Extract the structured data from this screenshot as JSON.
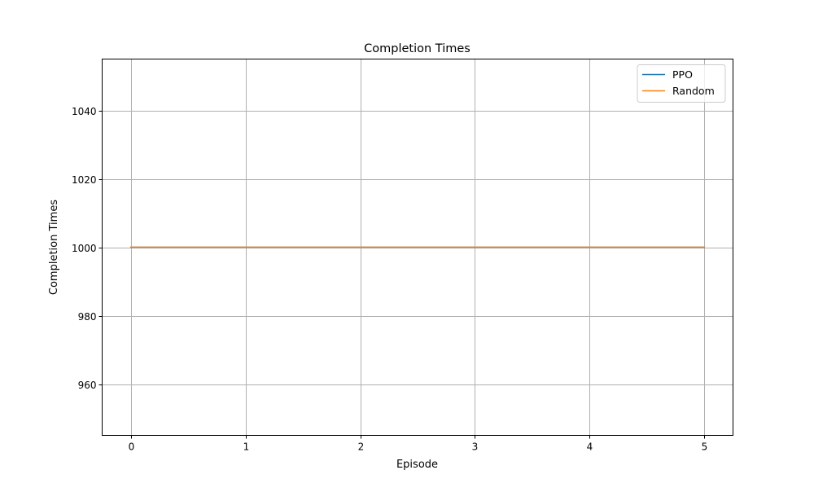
{
  "chart_data": {
    "type": "line",
    "title": "Completion Times",
    "xlabel": "Episode",
    "ylabel": "Completion Times",
    "xlim": [
      -0.25,
      5.25
    ],
    "ylim": [
      945,
      1055
    ],
    "xticks": [
      0,
      1,
      2,
      3,
      4,
      5
    ],
    "yticks": [
      960,
      980,
      1000,
      1020,
      1040
    ],
    "grid": true,
    "legend_position": "top-right",
    "x": [
      0,
      1,
      2,
      3,
      4,
      5
    ],
    "series": [
      {
        "name": "PPO",
        "color": "#1f77b4",
        "values": [
          1000,
          1000,
          1000,
          1000,
          1000,
          1000
        ]
      },
      {
        "name": "Random",
        "color": "#ff7f0e",
        "values": [
          1000,
          1000,
          1000,
          1000,
          1000,
          1000
        ]
      }
    ]
  }
}
